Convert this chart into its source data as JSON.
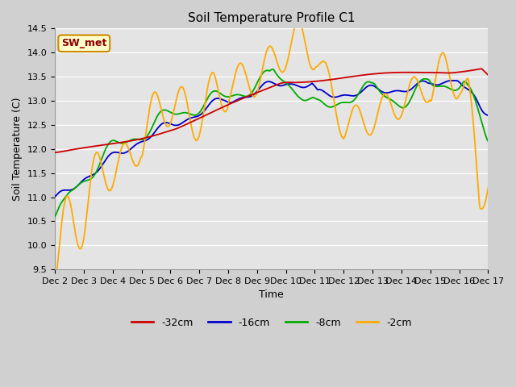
{
  "title": "Soil Temperature Profile C1",
  "xlabel": "Time",
  "ylabel": "Soil Temperature (C)",
  "ylim": [
    9.5,
    14.5
  ],
  "xlim": [
    0,
    15
  ],
  "xtick_labels": [
    "Dec 2",
    "Dec 3",
    "Dec 4",
    "Dec 5",
    "Dec 6",
    "Dec 7",
    "Dec 8",
    "Dec 9",
    "Dec 10",
    "Dec 11",
    "Dec 12",
    "Dec 13",
    "Dec 14",
    "Dec 15",
    "Dec 16",
    "Dec 17"
  ],
  "ytick_vals": [
    9.5,
    10.0,
    10.5,
    11.0,
    11.5,
    12.0,
    12.5,
    13.0,
    13.5,
    14.0,
    14.5
  ],
  "colors": {
    "32cm": "#cc0000",
    "16cm": "#0000cc",
    "8cm": "#00aa00",
    "2cm": "#ffaa00"
  },
  "legend_label": "SW_met",
  "fig_bg": "#d8d8d8",
  "plot_bg": "#e0e0e0"
}
